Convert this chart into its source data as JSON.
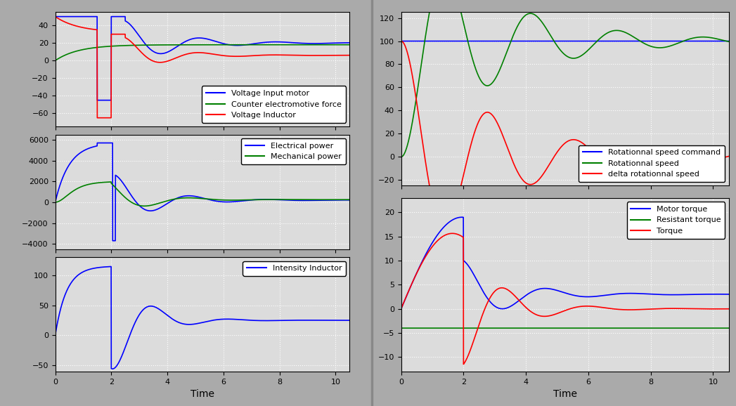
{
  "fig_width": 10.47,
  "fig_height": 5.78,
  "fig_facecolor": "#aaaaaa",
  "subplot_facecolor": "#dcdcdc",
  "grid_color": "white",
  "ax1": {
    "ylim": [
      -75,
      55
    ],
    "yticks": [
      -60,
      -40,
      -20,
      0,
      20,
      40
    ],
    "legend": [
      "Voltage Input motor",
      "Counter electromotive force",
      "Voltage Inductor"
    ],
    "legend_colors": [
      "blue",
      "green",
      "red"
    ]
  },
  "ax2": {
    "ylim": [
      -4500,
      6500
    ],
    "yticks": [
      -4000,
      -2000,
      0,
      2000,
      4000,
      6000
    ],
    "legend": [
      "Electrical power",
      "Mechanical power"
    ],
    "legend_colors": [
      "blue",
      "green"
    ]
  },
  "ax3": {
    "ylim": [
      -60,
      130
    ],
    "yticks": [
      -50,
      0,
      50,
      100
    ],
    "xlabel": "Time",
    "legend": [
      "Intensity Inductor"
    ],
    "legend_colors": [
      "blue"
    ]
  },
  "ax4": {
    "ylim": [
      -25,
      125
    ],
    "yticks": [
      -20,
      0,
      20,
      40,
      60,
      80,
      100,
      120
    ],
    "legend": [
      "Rotationnal speed command",
      "Rotationnal speed",
      "delta rotationnal speed"
    ],
    "legend_colors": [
      "blue",
      "green",
      "red"
    ]
  },
  "ax5": {
    "ylim": [
      -13,
      23
    ],
    "yticks": [
      -10,
      -5,
      0,
      5,
      10,
      15,
      20
    ],
    "xlabel": "Time",
    "legend": [
      "Motor torque",
      "Resistant torque",
      "Torque"
    ],
    "legend_colors": [
      "blue",
      "green",
      "red"
    ]
  }
}
